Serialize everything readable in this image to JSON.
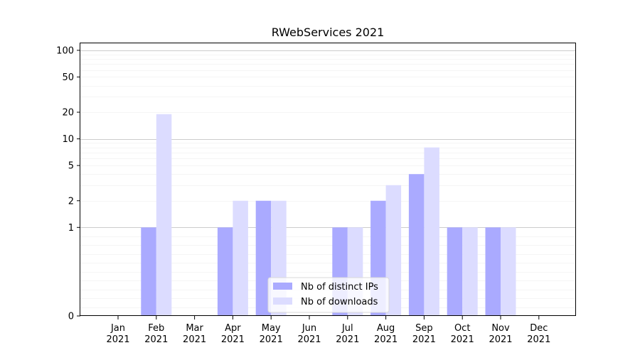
{
  "chart_data": {
    "type": "bar",
    "title": "RWebServices 2021",
    "xlabel": "",
    "ylabel": "",
    "categories": [
      "Jan\n2021",
      "Feb\n2021",
      "Mar\n2021",
      "Apr\n2021",
      "May\n2021",
      "Jun\n2021",
      "Jul\n2021",
      "Aug\n2021",
      "Sep\n2021",
      "Oct\n2021",
      "Nov\n2021",
      "Dec\n2021"
    ],
    "series": [
      {
        "name": "Nb of distinct IPs",
        "color": "#aaaaff",
        "values": [
          0,
          1,
          0,
          1,
          2,
          0,
          1,
          2,
          4,
          1,
          1,
          0
        ]
      },
      {
        "name": "Nb of downloads",
        "color": "#dcdcff",
        "values": [
          0,
          19,
          0,
          2,
          2,
          0,
          1,
          3,
          8,
          1,
          1,
          0
        ]
      }
    ],
    "yscale": "symlog",
    "ylim": [
      0,
      120
    ],
    "yticks": [
      0,
      1,
      2,
      5,
      10,
      20,
      50,
      100
    ],
    "ytick_labels": [
      "0",
      "1",
      "2",
      "5",
      "10",
      "20",
      "50",
      "100"
    ],
    "grid": true,
    "legend_position": "lower-center"
  }
}
